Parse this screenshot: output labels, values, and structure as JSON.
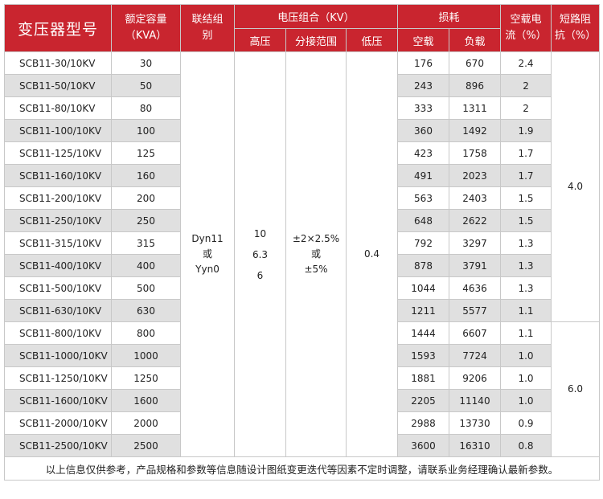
{
  "headers": {
    "model": "变压器型号",
    "capacity_line1": "额定容量",
    "capacity_line2": "（KVA）",
    "connection_line1": "联结组",
    "connection_line2": "别",
    "voltage_combo": "电压组合（KV）",
    "high_voltage": "高压",
    "tap_range": "分接范围",
    "low_voltage": "低压",
    "loss": "损耗",
    "no_load": "空载",
    "load": "负载",
    "no_load_current_line1": "空载电",
    "no_load_current_line2": "流（%）",
    "impedance_line1": "短路阻",
    "impedance_line2": "抗（%）"
  },
  "rows": [
    {
      "model": "SCB11-30/10KV",
      "capacity": "30",
      "no_load": "176",
      "load": "670",
      "current": "2.4"
    },
    {
      "model": "SCB11-50/10KV",
      "capacity": "50",
      "no_load": "243",
      "load": "896",
      "current": "2"
    },
    {
      "model": "SCB11-80/10KV",
      "capacity": "80",
      "no_load": "333",
      "load": "1311",
      "current": "2"
    },
    {
      "model": "SCB11-100/10KV",
      "capacity": "100",
      "no_load": "360",
      "load": "1492",
      "current": "1.9"
    },
    {
      "model": "SCB11-125/10KV",
      "capacity": "125",
      "no_load": "423",
      "load": "1758",
      "current": "1.7"
    },
    {
      "model": "SCB11-160/10KV",
      "capacity": "160",
      "no_load": "491",
      "load": "2023",
      "current": "1.7"
    },
    {
      "model": "SCB11-200/10KV",
      "capacity": "200",
      "no_load": "563",
      "load": "2403",
      "current": "1.5"
    },
    {
      "model": "SCB11-250/10KV",
      "capacity": "250",
      "no_load": "648",
      "load": "2622",
      "current": "1.5"
    },
    {
      "model": "SCB11-315/10KV",
      "capacity": "315",
      "no_load": "792",
      "load": "3297",
      "current": "1.3"
    },
    {
      "model": "SCB11-400/10KV",
      "capacity": "400",
      "no_load": "878",
      "load": "3791",
      "current": "1.3"
    },
    {
      "model": "SCB11-500/10KV",
      "capacity": "500",
      "no_load": "1044",
      "load": "4636",
      "current": "1.3"
    },
    {
      "model": "SCB11-630/10KV",
      "capacity": "630",
      "no_load": "1211",
      "load": "5577",
      "current": "1.1"
    },
    {
      "model": "SCB11-800/10KV",
      "capacity": "800",
      "no_load": "1444",
      "load": "6607",
      "current": "1.1"
    },
    {
      "model": "SCB11-1000/10KV",
      "capacity": "1000",
      "no_load": "1593",
      "load": "7724",
      "current": "1.0"
    },
    {
      "model": "SCB11-1250/10KV",
      "capacity": "1250",
      "no_load": "1881",
      "load": "9206",
      "current": "1.0"
    },
    {
      "model": "SCB11-1600/10KV",
      "capacity": "1600",
      "no_load": "2205",
      "load": "11140",
      "current": "1.0"
    },
    {
      "model": "SCB11-2000/10KV",
      "capacity": "2000",
      "no_load": "2988",
      "load": "13730",
      "current": "0.9"
    },
    {
      "model": "SCB11-2500/10KV",
      "capacity": "2500",
      "no_load": "3600",
      "load": "16310",
      "current": "0.8"
    }
  ],
  "merged": {
    "connection_line1": "Dyn11",
    "connection_line2": "或",
    "connection_line3": "Yyn0",
    "high_voltage_line1": "10",
    "high_voltage_line2": "6.3",
    "high_voltage_line3": "6",
    "tap_line1": "±2×2.5%",
    "tap_line2": "或",
    "tap_line3": "±5%",
    "low_voltage": "0.4",
    "impedance_small": "4.0",
    "impedance_large": "6.0"
  },
  "footnote": "以上信息仅供参考，产品规格和参数等信息随设计图纸变更迭代等因素不定时调整，请联系业务经理确认最新参数。",
  "colors": {
    "header_bg": "#c9252f",
    "header_text": "#ffffff",
    "stripe": "#e0e0e0",
    "border": "#c8c8c8"
  }
}
